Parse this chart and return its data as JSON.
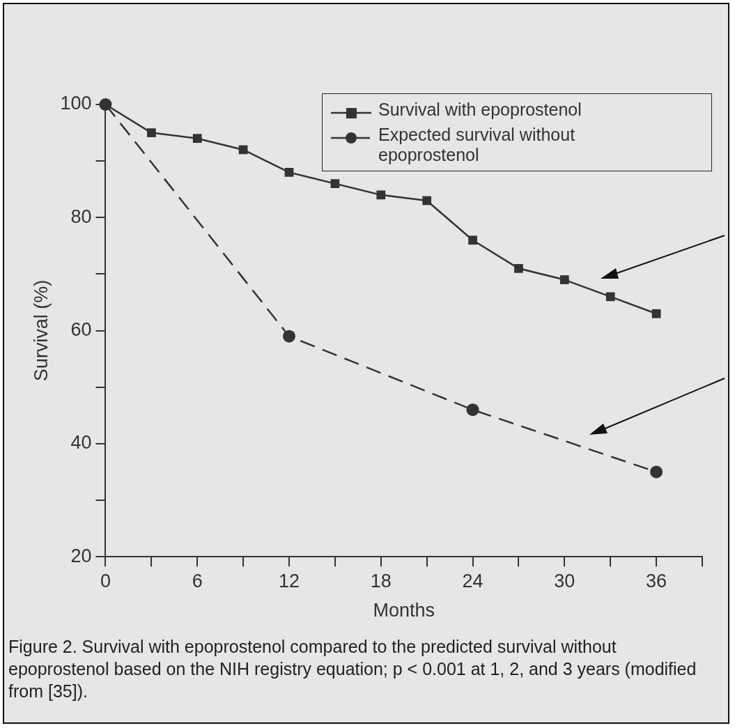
{
  "chart_data": {
    "type": "line",
    "xlabel": "Months",
    "ylabel": "Survival (%)",
    "xlim": [
      0,
      39
    ],
    "xticks": [
      0,
      {
        "value": 3,
        "label": null
      },
      6,
      {
        "value": 9,
        "label": null
      },
      12,
      {
        "value": 15,
        "label": null
      },
      18,
      {
        "value": 21,
        "label": null
      },
      24,
      {
        "value": 27,
        "label": null
      },
      30,
      {
        "value": 33,
        "label": null
      },
      36,
      {
        "value": 39,
        "label": null
      }
    ],
    "ylim": [
      20,
      100
    ],
    "yticks": [
      20,
      {
        "value": 30,
        "label": null
      },
      40,
      {
        "value": 50,
        "label": null
      },
      60,
      {
        "value": 70,
        "label": null
      },
      80,
      {
        "value": 90,
        "label": null
      },
      100
    ],
    "series": [
      {
        "name": "Survival with epoprostenol",
        "color": "#333333",
        "marker": "square",
        "line_style": "solid",
        "x": [
          0,
          3,
          6,
          9,
          12,
          15,
          18,
          21,
          24,
          27,
          30,
          33,
          36
        ],
        "values": [
          100,
          95,
          94,
          92,
          88,
          86,
          84,
          83,
          76,
          71,
          69,
          66,
          63
        ]
      },
      {
        "name": "Expected survival without epoprostenol",
        "color": "#333333",
        "marker": "circle",
        "line_style": "dashed",
        "x": [
          0,
          12,
          24,
          36
        ],
        "values": [
          100,
          59,
          46,
          35
        ]
      }
    ],
    "legend": "top right",
    "grid": false,
    "annotations": [
      "Figure 2. Survival with epoprostenol compared to the predicted survival without epoprostenol based on the NIH registry equation; p < 0.001 at 1, 2, and 3 years (modified from [35])."
    ]
  }
}
